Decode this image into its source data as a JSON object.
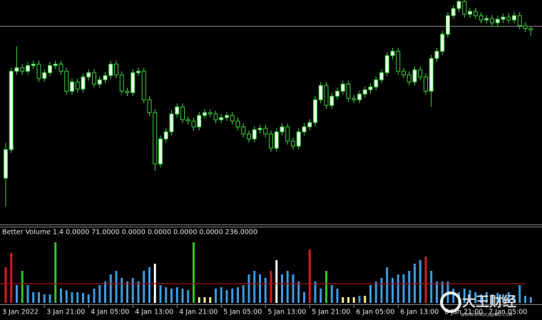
{
  "chart_data": [
    {
      "type": "candlestick",
      "up_color": "#e8ffe8",
      "down_color": "#000000",
      "edge_color": "#3fd33f",
      "ylim": [
        -15,
        300
      ],
      "hline": 263,
      "hline_color": "#9a9a9a",
      "x_labels": [
        "3 Jan 2022",
        "3 Jan 21:00",
        "4 Jan 05:00",
        "4 Jan 13:00",
        "4 Jan 21:00",
        "5 Jan 05:00",
        "5 Jan 13:00",
        "5 Jan 21:00",
        "6 Jan 05:00",
        "6 Jan 13:00",
        "6 Jan 21:00",
        "7 Jan 05:00"
      ],
      "open": [
        50,
        90,
        200,
        205,
        200,
        208,
        210,
        190,
        198,
        208,
        210,
        200,
        172,
        185,
        175,
        192,
        198,
        182,
        188,
        194,
        210,
        195,
        172,
        170,
        198,
        200,
        160,
        142,
        70,
        105,
        115,
        140,
        150,
        132,
        130,
        122,
        138,
        142,
        140,
        132,
        135,
        138,
        130,
        122,
        112,
        105,
        118,
        120,
        112,
        92,
        115,
        122,
        102,
        95,
        115,
        122,
        128,
        160,
        180,
        152,
        165,
        172,
        182,
        162,
        160,
        168,
        174,
        178,
        188,
        198,
        222,
        228,
        200,
        195,
        185,
        202,
        192,
        172,
        218,
        228,
        252,
        278,
        288,
        298,
        280,
        284,
        278,
        272,
        274,
        268,
        273,
        276,
        272,
        278,
        264,
        260
      ],
      "high": [
        100,
        205,
        235,
        210,
        213,
        215,
        215,
        203,
        213,
        215,
        215,
        205,
        190,
        190,
        197,
        203,
        203,
        193,
        199,
        215,
        215,
        200,
        177,
        203,
        205,
        205,
        165,
        147,
        110,
        120,
        145,
        155,
        155,
        137,
        135,
        143,
        147,
        147,
        145,
        140,
        143,
        143,
        135,
        127,
        117,
        123,
        125,
        125,
        117,
        120,
        127,
        127,
        107,
        120,
        127,
        133,
        165,
        185,
        185,
        170,
        177,
        187,
        187,
        167,
        173,
        179,
        183,
        193,
        203,
        227,
        233,
        233,
        205,
        200,
        207,
        207,
        197,
        223,
        233,
        257,
        283,
        293,
        303,
        303,
        289,
        289,
        283,
        279,
        279,
        278,
        281,
        281,
        283,
        283,
        269,
        263
      ],
      "low": [
        10,
        85,
        195,
        195,
        195,
        203,
        185,
        185,
        193,
        203,
        195,
        167,
        167,
        170,
        170,
        187,
        177,
        177,
        183,
        189,
        190,
        167,
        165,
        165,
        193,
        155,
        137,
        60,
        65,
        100,
        110,
        135,
        127,
        125,
        117,
        117,
        133,
        135,
        127,
        127,
        130,
        125,
        117,
        107,
        100,
        100,
        113,
        107,
        87,
        87,
        110,
        97,
        90,
        90,
        110,
        117,
        123,
        155,
        147,
        147,
        160,
        167,
        157,
        155,
        155,
        163,
        169,
        173,
        183,
        193,
        217,
        195,
        190,
        180,
        180,
        187,
        167,
        150,
        213,
        223,
        247,
        273,
        283,
        275,
        275,
        273,
        267,
        267,
        263,
        263,
        268,
        267,
        267,
        259,
        255,
        250
      ],
      "close": [
        90,
        200,
        205,
        200,
        208,
        210,
        190,
        198,
        208,
        210,
        200,
        172,
        185,
        175,
        192,
        198,
        182,
        188,
        194,
        210,
        195,
        172,
        170,
        198,
        200,
        160,
        142,
        70,
        105,
        115,
        140,
        150,
        132,
        130,
        122,
        138,
        142,
        140,
        132,
        135,
        138,
        130,
        122,
        112,
        105,
        118,
        120,
        112,
        92,
        115,
        122,
        102,
        95,
        115,
        122,
        128,
        160,
        180,
        152,
        165,
        172,
        182,
        162,
        160,
        168,
        174,
        178,
        188,
        198,
        222,
        228,
        200,
        195,
        185,
        202,
        192,
        172,
        218,
        228,
        252,
        278,
        288,
        298,
        280,
        284,
        278,
        272,
        274,
        268,
        273,
        276,
        272,
        278,
        264,
        260,
        258
      ]
    },
    {
      "type": "bar",
      "title": "Better Volume 1.4 0.0000 71.0000 0.0000 0.0000 0.0000 0.0000 236.0000",
      "ylim": [
        0,
        107
      ],
      "average": 27,
      "average_color": "#a31515",
      "values": [
        50,
        70,
        25,
        45,
        25,
        15,
        15,
        12,
        12,
        85,
        20,
        18,
        15,
        15,
        14,
        12,
        20,
        25,
        30,
        40,
        45,
        35,
        30,
        35,
        30,
        45,
        50,
        55,
        25,
        22,
        20,
        22,
        20,
        18,
        85,
        8,
        8,
        8,
        20,
        22,
        18,
        20,
        22,
        25,
        40,
        45,
        40,
        35,
        45,
        60,
        40,
        45,
        40,
        30,
        15,
        75,
        30,
        20,
        45,
        25,
        20,
        8,
        8,
        8,
        10,
        10,
        25,
        30,
        35,
        50,
        35,
        40,
        40,
        45,
        55,
        60,
        65,
        45,
        30,
        30,
        30,
        20,
        15,
        20,
        18,
        15,
        12,
        15,
        12,
        14,
        12,
        15,
        10,
        25,
        10,
        8
      ],
      "colors": [
        "#d21d1d",
        "#d21d1d",
        "#3d9be0",
        "#2fc52f",
        "#3d9be0",
        "#3d9be0",
        "#3d9be0",
        "#3d9be0",
        "#3d9be0",
        "#2fc52f",
        "#3d9be0",
        "#3d9be0",
        "#3d9be0",
        "#3d9be0",
        "#3d9be0",
        "#3d9be0",
        "#3d9be0",
        "#3d9be0",
        "#3d9be0",
        "#3d9be0",
        "#3d9be0",
        "#3d9be0",
        "#3d9be0",
        "#3d9be0",
        "#3d9be0",
        "#3d9be0",
        "#3d9be0",
        "#ffffff",
        "#3d9be0",
        "#3d9be0",
        "#3d9be0",
        "#3d9be0",
        "#3d9be0",
        "#3d9be0",
        "#2fc52f",
        "#f2f28a",
        "#f2f28a",
        "#f2f28a",
        "#3d9be0",
        "#3d9be0",
        "#3d9be0",
        "#3d9be0",
        "#3d9be0",
        "#3d9be0",
        "#3d9be0",
        "#3d9be0",
        "#3d9be0",
        "#3d9be0",
        "#d21d1d",
        "#ffffff",
        "#3d9be0",
        "#3d9be0",
        "#3d9be0",
        "#3d9be0",
        "#3d9be0",
        "#d21d1d",
        "#3d9be0",
        "#3d9be0",
        "#2fc52f",
        "#3d9be0",
        "#3d9be0",
        "#f2f28a",
        "#f2f28a",
        "#f2f28a",
        "#3d9be0",
        "#f2f28a",
        "#3d9be0",
        "#3d9be0",
        "#3d9be0",
        "#3d9be0",
        "#3d9be0",
        "#3d9be0",
        "#3d9be0",
        "#3d9be0",
        "#3d9be0",
        "#3d9be0",
        "#d21d1d",
        "#3d9be0",
        "#3d9be0",
        "#3d9be0",
        "#3d9be0",
        "#3d9be0",
        "#3d9be0",
        "#3d9be0",
        "#3d9be0",
        "#3d9be0",
        "#3d9be0",
        "#3d9be0",
        "#3d9be0",
        "#3d9be0",
        "#3d9be0",
        "#3d9be0",
        "#3d9be0",
        "#3d9be0",
        "#3d9be0",
        "#3d9be0"
      ]
    }
  ],
  "watermark": {
    "brand": "大王财经",
    "site": "WWW.KINGCAIJING.COM"
  }
}
